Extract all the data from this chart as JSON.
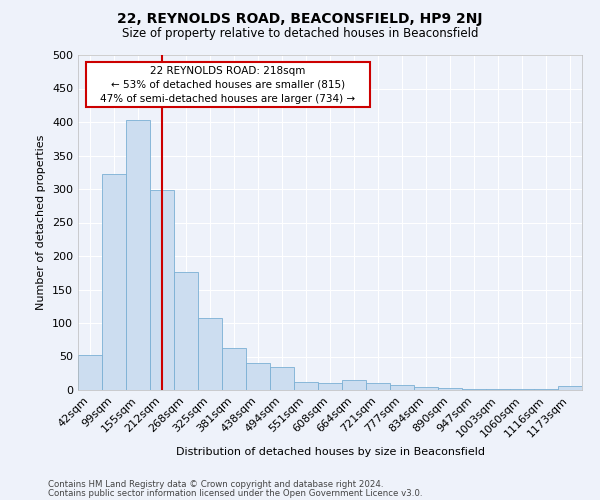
{
  "title1": "22, REYNOLDS ROAD, BEACONSFIELD, HP9 2NJ",
  "title2": "Size of property relative to detached houses in Beaconsfield",
  "xlabel": "Distribution of detached houses by size in Beaconsfield",
  "ylabel": "Number of detached properties",
  "footnote1": "Contains HM Land Registry data © Crown copyright and database right 2024.",
  "footnote2": "Contains public sector information licensed under the Open Government Licence v3.0.",
  "categories": [
    "42sqm",
    "99sqm",
    "155sqm",
    "212sqm",
    "268sqm",
    "325sqm",
    "381sqm",
    "438sqm",
    "494sqm",
    "551sqm",
    "608sqm",
    "664sqm",
    "721sqm",
    "777sqm",
    "834sqm",
    "890sqm",
    "947sqm",
    "1003sqm",
    "1060sqm",
    "1116sqm",
    "1173sqm"
  ],
  "values": [
    52,
    322,
    403,
    299,
    176,
    108,
    63,
    40,
    35,
    12,
    10,
    15,
    10,
    8,
    5,
    3,
    2,
    1,
    1,
    1,
    6
  ],
  "bar_color": "#ccddf0",
  "bar_edge_color": "#7bafd4",
  "background_color": "#eef2fa",
  "grid_color": "#ffffff",
  "annotation_box_color": "#ffffff",
  "annotation_border_color": "#cc0000",
  "vline_color": "#cc0000",
  "vline_x": 3.0,
  "annotation_text1": "22 REYNOLDS ROAD: 218sqm",
  "annotation_text2": "← 53% of detached houses are smaller (815)",
  "annotation_text3": "47% of semi-detached houses are larger (734) →",
  "ylim": [
    0,
    500
  ],
  "yticks": [
    0,
    50,
    100,
    150,
    200,
    250,
    300,
    350,
    400,
    450,
    500
  ]
}
